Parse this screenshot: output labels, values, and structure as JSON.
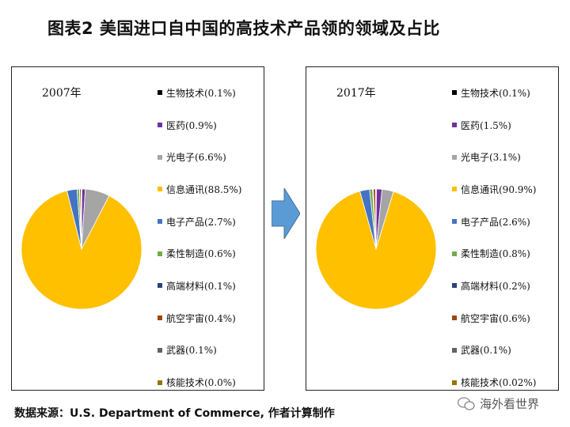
{
  "title": "图表2  美国进口自中国的高技术产品领的领域及占比",
  "source": "数据来源：U.S. Department of Commerce, 作者计算制作",
  "watermark": "海外看世界",
  "chart_data": [
    {
      "type": "pie",
      "title": "2007年",
      "legend_position": "right",
      "slices": [
        {
          "name": "生物技术",
          "label": "生物技术(0.1%)",
          "value": 0.1,
          "color": "#000000"
        },
        {
          "name": "医药",
          "label": "医药(0.9%)",
          "value": 0.9,
          "color": "#7030A0"
        },
        {
          "name": "光电子",
          "label": "光电子(6.6%)",
          "value": 6.6,
          "color": "#A5A5A5"
        },
        {
          "name": "信息通讯",
          "label": "信息通讯(88.5%)",
          "value": 88.5,
          "color": "#FFC000"
        },
        {
          "name": "电子产品",
          "label": "电子产品(2.7%)",
          "value": 2.7,
          "color": "#4472C4"
        },
        {
          "name": "柔性制造",
          "label": "柔性制造(0.6%)",
          "value": 0.6,
          "color": "#70AD47"
        },
        {
          "name": "高端材料",
          "label": "高端材料(0.1%)",
          "value": 0.1,
          "color": "#264478"
        },
        {
          "name": "航空宇宙",
          "label": "航空宇宙(0.4%)",
          "value": 0.4,
          "color": "#9E480E"
        },
        {
          "name": "武器",
          "label": "武器(0.1%)",
          "value": 0.1,
          "color": "#636363"
        },
        {
          "name": "核能技术",
          "label": "核能技术(0.0%)",
          "value": 0.0,
          "color": "#997300"
        }
      ]
    },
    {
      "type": "pie",
      "title": "2017年",
      "legend_position": "right",
      "slices": [
        {
          "name": "生物技术",
          "label": "生物技术(0.1%)",
          "value": 0.1,
          "color": "#000000"
        },
        {
          "name": "医药",
          "label": "医药(1.5%)",
          "value": 1.5,
          "color": "#7030A0"
        },
        {
          "name": "光电子",
          "label": "光电子(3.1%)",
          "value": 3.1,
          "color": "#A5A5A5"
        },
        {
          "name": "信息通讯",
          "label": "信息通讯(90.9%)",
          "value": 90.9,
          "color": "#FFC000"
        },
        {
          "name": "电子产品",
          "label": "电子产品(2.6%)",
          "value": 2.6,
          "color": "#4472C4"
        },
        {
          "name": "柔性制造",
          "label": "柔性制造(0.8%)",
          "value": 0.8,
          "color": "#70AD47"
        },
        {
          "name": "高端材料",
          "label": "高端材料(0.2%)",
          "value": 0.2,
          "color": "#264478"
        },
        {
          "name": "航空宇宙",
          "label": "航空宇宙(0.6%)",
          "value": 0.6,
          "color": "#9E480E"
        },
        {
          "name": "武器",
          "label": "武器(0.1%)",
          "value": 0.1,
          "color": "#636363"
        },
        {
          "name": "核能技术",
          "label": "核能技术(0.02%)",
          "value": 0.02,
          "color": "#997300"
        }
      ]
    }
  ]
}
